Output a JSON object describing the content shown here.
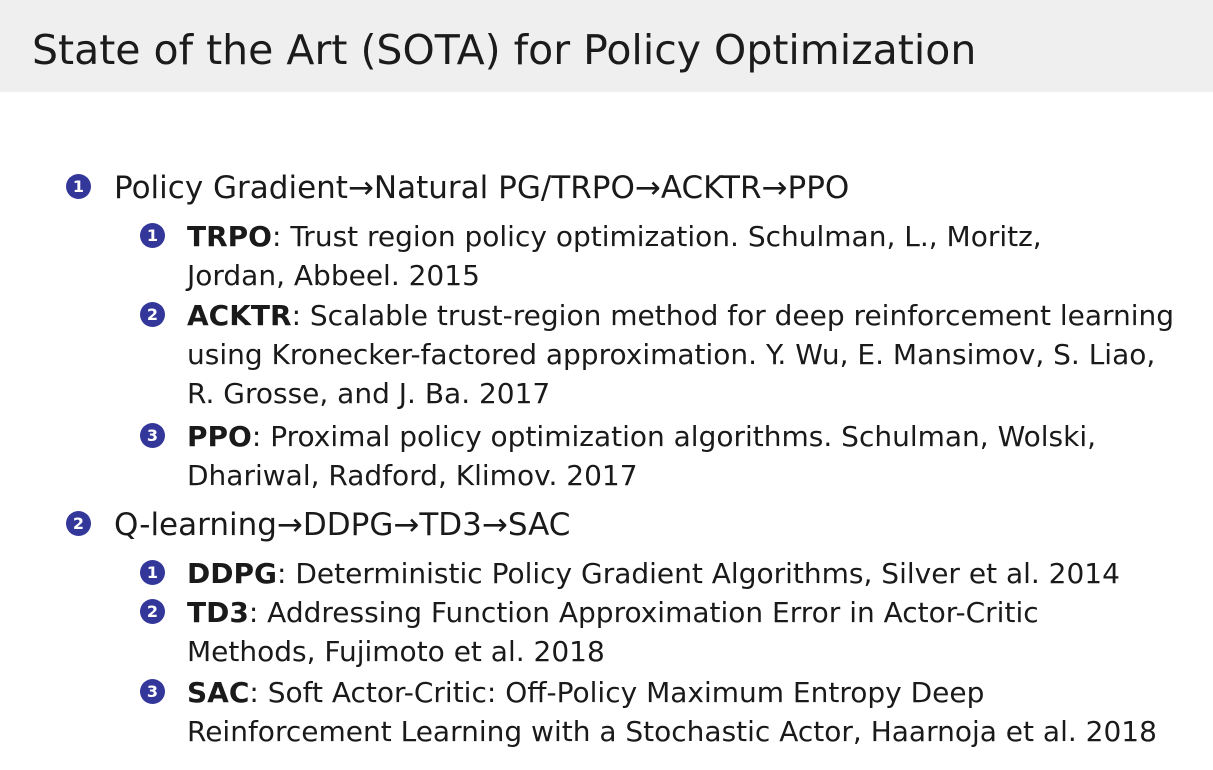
{
  "slide": {
    "title": "State of the Art (SOTA) for Policy Optimization"
  },
  "items": [
    {
      "number": "1",
      "text": "Policy Gradient→Natural PG/TRPO→ACKTR→PPO",
      "subitems": [
        {
          "number": "1",
          "name": "TRPO",
          "line1": ": Trust region policy optimization. Schulman, L., Moritz,",
          "line2": "Jordan, Abbeel. 2015"
        },
        {
          "number": "2",
          "name": "ACKTR",
          "line1": ": Scalable trust-region method for deep reinforcement learning",
          "line2": "using Kronecker-factored approximation. Y. Wu, E. Mansimov, S. Liao,",
          "line3": "R. Grosse, and J. Ba. 2017"
        },
        {
          "number": "3",
          "name": "PPO",
          "line1": ": Proximal policy optimization algorithms. Schulman, Wolski,",
          "line2": "Dhariwal, Radford, Klimov. 2017"
        }
      ]
    },
    {
      "number": "2",
      "text": "Q-learning→DDPG→TD3→SAC",
      "subitems": [
        {
          "number": "1",
          "name": "DDPG",
          "line1": ": Deterministic Policy Gradient Algorithms, Silver et al. 2014"
        },
        {
          "number": "2",
          "name": "TD3",
          "line1": ": Addressing Function Approximation Error in Actor-Critic",
          "line2": "Methods, Fujimoto et al. 2018"
        },
        {
          "number": "3",
          "name": "SAC",
          "line1": ": Soft Actor-Critic: Off-Policy Maximum Entropy Deep",
          "line2": "Reinforcement Learning with a Stochastic Actor, Haarnoja et al. 2018"
        }
      ]
    }
  ],
  "colors": {
    "badge": "#34379a",
    "title_bar": "#efefef",
    "text": "#1a1a1a"
  }
}
